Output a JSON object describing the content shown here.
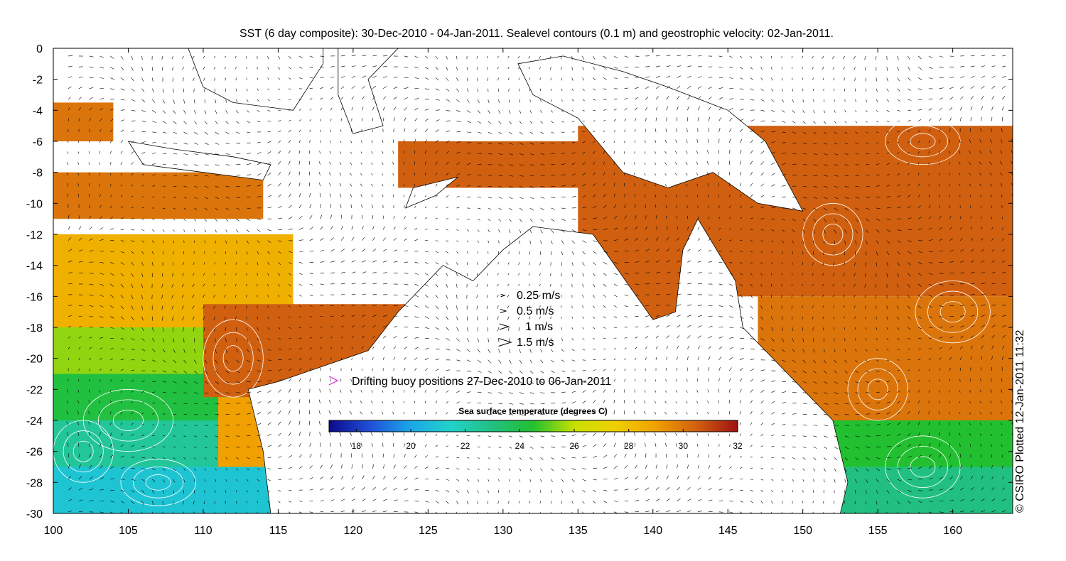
{
  "title": "SST (6 day composite): 30-Dec-2010 - 04-Jan-2011. Sealevel contours (0.1 m) and geostrophic velocity: 02-Jan-2011.",
  "credit": "© CSIRO Plotted 12-Jan-2011 11:32",
  "map": {
    "lon_range": [
      100,
      164
    ],
    "lat_range": [
      -30,
      0
    ],
    "x_ticks": [
      100,
      105,
      110,
      115,
      120,
      125,
      130,
      135,
      140,
      145,
      150,
      155,
      160
    ],
    "y_ticks": [
      0,
      -2,
      -4,
      -6,
      -8,
      -10,
      -12,
      -14,
      -16,
      -18,
      -20,
      -22,
      -24,
      -26,
      -28,
      -30
    ]
  },
  "velocity_legend": [
    {
      "label": "0.25 m/s",
      "speed": 0.25
    },
    {
      "label": "0.5 m/s",
      "speed": 0.5
    },
    {
      "label": "1 m/s",
      "speed": 1
    },
    {
      "label": "1.5 m/s",
      "speed": 1.5
    }
  ],
  "buoy_legend": {
    "label": "Drifting buoy positions 27-Dec-2010 to 06-Jan-2011",
    "color": "#e040e0"
  },
  "colorbar": {
    "title": "Sea surface temperature (degrees C)",
    "range": [
      17,
      32
    ],
    "ticks": [
      18,
      20,
      22,
      24,
      26,
      28,
      30,
      32
    ],
    "stops": [
      "#0a0a8a",
      "#1f4fd8",
      "#1aa7e8",
      "#22d2c8",
      "#22c080",
      "#22c030",
      "#c8e000",
      "#f0d000",
      "#f0a000",
      "#d06010",
      "#a01010"
    ]
  },
  "colors": {
    "land": "#ffffff",
    "coast": "#000000",
    "contour": "#ffffff",
    "arrow": "#000000"
  }
}
